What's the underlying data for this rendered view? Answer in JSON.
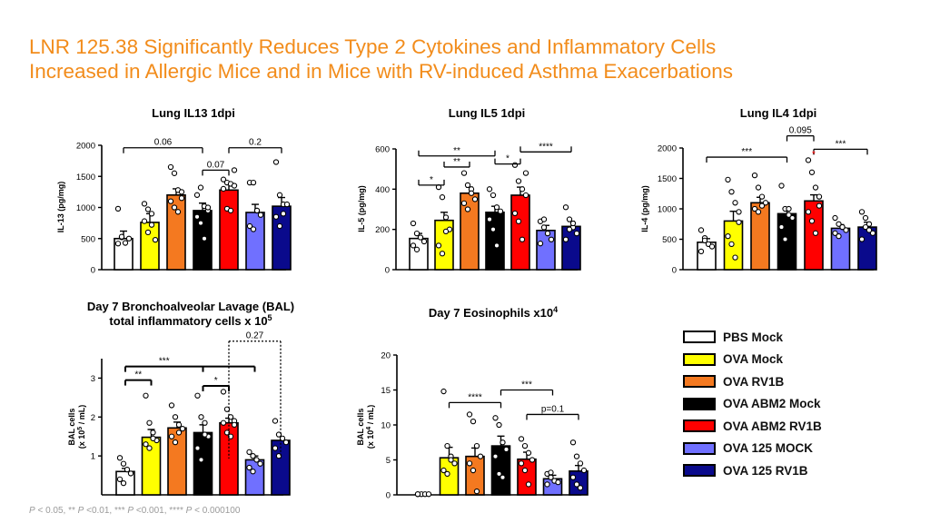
{
  "slide": {
    "title_line1": "LNR 125.38 Significantly Reduces Type 2 Cytokines and Inflammatory Cells",
    "title_line2": "Increased in Allergic Mice and in Mice with RV-induced Asthma Exacerbations",
    "footnote": {
      "parts": [
        "P",
        " < 0.05, ** ",
        "P",
        " <0.01, *** ",
        "P",
        " <0.001, **** ",
        "P",
        " < 0.000100"
      ]
    }
  },
  "legend": {
    "items": [
      {
        "label": "PBS Mock",
        "color": "#ffffff"
      },
      {
        "label": "OVA Mock",
        "color": "#ffff00"
      },
      {
        "label": "OVA RV1B",
        "color": "#f47920"
      },
      {
        "label": "OVA ABM2 Mock",
        "color": "#000000"
      },
      {
        "label": "OVA ABM2 RV1B",
        "color": "#ff0000"
      },
      {
        "label": "OVA 125 MOCK",
        "color": "#7070ff"
      },
      {
        "label": "OVA 125 RV1B",
        "color": "#0a0a8c"
      }
    ]
  },
  "colors": {
    "title": "#f28c1b",
    "significance_marker": "#ff0000"
  },
  "chart_data": [
    {
      "type": "bar",
      "title": "Lung IL13 1dpi",
      "ylabel": "IL-13 (pg/mg)",
      "ylim": [
        0,
        2000
      ],
      "yticks": [
        "0",
        "500",
        "1000",
        "1500",
        "2000"
      ],
      "categories": [
        "PBS Mock",
        "OVA Mock",
        "OVA RV1B",
        "OVA ABM2 Mock",
        "OVA ABM2 RV1B",
        "OVA 125 MOCK",
        "OVA 125 RV1B"
      ],
      "values": [
        500,
        760,
        1200,
        950,
        1280,
        920,
        1020
      ],
      "errors": [
        120,
        140,
        100,
        120,
        110,
        130,
        140
      ],
      "points": [
        [
          980,
          520,
          430,
          500,
          420,
          530
        ],
        [
          1060,
          970,
          720,
          480,
          780,
          600,
          900
        ],
        [
          1650,
          1550,
          1280,
          1250,
          1100,
          1000,
          930,
          1150
        ],
        [
          1200,
          1320,
          1020,
          950,
          850,
          750,
          500,
          1000
        ],
        [
          1450,
          1400,
          1380,
          1350,
          1300,
          980,
          950,
          1600
        ],
        [
          1400,
          1400,
          950,
          880,
          700,
          650,
          950
        ],
        [
          1730,
          1200,
          1050,
          1050,
          850,
          700,
          900
        ]
      ],
      "brackets": [
        {
          "from": 0,
          "to": 3,
          "label": "0.06",
          "y": 1960,
          "ticks": "down"
        },
        {
          "from": 3,
          "to": 4,
          "label": "0.07",
          "y": 1600,
          "ticks": "down"
        },
        {
          "from": 4,
          "to": 6,
          "label": "0.2",
          "y": 1960,
          "ticks": "down"
        }
      ]
    },
    {
      "type": "bar",
      "title": "Lung IL5 1dpi",
      "ylabel": "IL-5 (pg/mg)",
      "ylim": [
        0,
        600
      ],
      "yticks": [
        "0",
        "200",
        "400",
        "600"
      ],
      "categories": [
        "PBS Mock",
        "OVA Mock",
        "OVA RV1B",
        "OVA ABM2 Mock",
        "OVA ABM2 RV1B",
        "OVA 125 MOCK",
        "OVA 125 RV1B"
      ],
      "values": [
        155,
        245,
        380,
        285,
        370,
        195,
        215
      ],
      "errors": [
        25,
        40,
        30,
        30,
        40,
        25,
        25
      ],
      "points": [
        [
          230,
          180,
          160,
          140,
          120,
          100
        ],
        [
          410,
          360,
          260,
          200,
          120,
          80,
          190
        ],
        [
          480,
          420,
          400,
          350,
          330,
          300,
          380
        ],
        [
          400,
          370,
          310,
          290,
          250,
          200,
          120
        ],
        [
          520,
          440,
          400,
          370,
          280,
          240,
          150,
          480
        ],
        [
          240,
          210,
          180,
          150,
          130,
          250
        ],
        [
          310,
          250,
          210,
          180,
          150,
          200,
          230
        ]
      ],
      "brackets": [
        {
          "from": 0,
          "to": 1,
          "label": "*",
          "y": 420,
          "ticks": "up"
        },
        {
          "from": 1,
          "to": 2,
          "label": "**",
          "y": 510,
          "ticks": "up"
        },
        {
          "from": 0,
          "to": 3,
          "label": "**",
          "y": 565,
          "ticks": "up"
        },
        {
          "from": 3,
          "to": 4,
          "label": "*",
          "y": 525,
          "ticks": "up"
        },
        {
          "from": 4,
          "to": 6,
          "label": "****",
          "y": 585,
          "ticks": "up"
        }
      ]
    },
    {
      "type": "bar",
      "title": "Lung IL4 1dpi",
      "ylabel": "IL-4 (pg/mg)",
      "ylim": [
        0,
        2000
      ],
      "yticks": [
        "0",
        "500",
        "1000",
        "1500",
        "2000"
      ],
      "categories": [
        "PBS Mock",
        "OVA Mock",
        "OVA RV1B",
        "OVA ABM2 Mock",
        "OVA ABM2 RV1B",
        "OVA 125 MOCK",
        "OVA 125 RV1B"
      ],
      "values": [
        450,
        800,
        1100,
        920,
        1130,
        680,
        700
      ],
      "errors": [
        60,
        160,
        90,
        90,
        100,
        60,
        80
      ],
      "points": [
        [
          650,
          520,
          420,
          380,
          300,
          480
        ],
        [
          1480,
          1280,
          1100,
          780,
          550,
          420,
          200,
          950
        ],
        [
          1550,
          1350,
          1200,
          1100,
          1000,
          950,
          1050
        ],
        [
          1380,
          1000,
          900,
          850,
          700,
          500,
          1000
        ],
        [
          1800,
          1600,
          1350,
          1200,
          950,
          800,
          600,
          1050
        ],
        [
          850,
          750,
          700,
          650,
          600,
          550,
          700
        ],
        [
          950,
          850,
          750,
          600,
          500,
          700,
          650
        ]
      ],
      "brackets": [
        {
          "from": 0,
          "to": 3,
          "label": "***",
          "y": 1850,
          "ticks": "down"
        },
        {
          "from": 3,
          "to": 4,
          "label": "0.095",
          "y": 2200,
          "ticks": "down"
        },
        {
          "from": 4,
          "to": 6,
          "label": "***",
          "y": 1980,
          "ticks": "down"
        }
      ],
      "markers": [
        {
          "bar": 4,
          "label": "*",
          "y": 1850
        }
      ]
    },
    {
      "type": "bar",
      "title": "Day 7 Bronchoalveolar Lavage (BAL)",
      "subtitle": "total inflammatory cells x 10",
      "subtitle_exp": "5",
      "ylabel": "BAL cells",
      "ylabel2": "(x 10",
      "ylabel2_exp": "5",
      "ylabel2_end": " / mL)",
      "ylim": [
        0,
        3.5
      ],
      "yticks": [
        "1",
        "2",
        "3"
      ],
      "categories": [
        "PBS Mock",
        "OVA Mock",
        "OVA RV1B",
        "OVA ABM2 Mock",
        "OVA ABM2 RV1B",
        "OVA 125 MOCK",
        "OVA 125 RV1B"
      ],
      "values": [
        0.6,
        1.48,
        1.72,
        1.6,
        1.85,
        0.9,
        1.4
      ],
      "errors": [
        0.08,
        0.2,
        0.15,
        0.2,
        0.12,
        0.1,
        0.1
      ],
      "points": [
        [
          0.95,
          0.8,
          0.65,
          0.55,
          0.4,
          0.3
        ],
        [
          2.55,
          1.85,
          1.6,
          1.4,
          1.3,
          1.2,
          1.45
        ],
        [
          2.3,
          2.0,
          1.8,
          1.7,
          1.5,
          1.35,
          1.6
        ],
        [
          2.55,
          2.0,
          1.85,
          1.5,
          1.2,
          0.9,
          1.55
        ],
        [
          2.65,
          2.2,
          2.0,
          1.9,
          1.85,
          1.6,
          1.5,
          1.8
        ],
        [
          1.1,
          1.0,
          0.9,
          0.8,
          0.7,
          0.6
        ],
        [
          1.9,
          1.55,
          1.45,
          1.35,
          1.2,
          1.0
        ]
      ],
      "brackets": [
        {
          "from": 0,
          "to": 1,
          "label": "**",
          "y": 2.95,
          "ticks": "down",
          "thick": true
        },
        {
          "from": 0,
          "to": 3,
          "label": "***",
          "y": 3.3,
          "ticks": "down",
          "thick": true
        },
        {
          "from": 3,
          "to": 4,
          "label": "*",
          "y": 2.8,
          "ticks": "down",
          "thick": true
        },
        {
          "from": 3,
          "to": 5,
          "label": "",
          "y": 3.3,
          "ticks": "down",
          "thick": true
        },
        {
          "from": 4,
          "to": 6,
          "label": "0.27",
          "y": 3.95,
          "ticks": "down",
          "dotted": true
        }
      ]
    },
    {
      "type": "bar",
      "title": "Day 7 Eosinophils x10",
      "title_exp": "4",
      "ylabel": "BAL cells",
      "ylabel2": "(x 10",
      "ylabel2_exp": "4",
      "ylabel2_end": " / mL)",
      "ylim": [
        0,
        20
      ],
      "yticks": [
        "0",
        "5",
        "10",
        "15",
        "20"
      ],
      "categories": [
        "PBS Mock",
        "OVA Mock",
        "OVA RV1B",
        "OVA ABM2 Mock",
        "OVA ABM2 RV1B",
        "OVA 125 MOCK",
        "OVA 125 RV1B"
      ],
      "values": [
        0,
        5.3,
        5.5,
        7.0,
        5.1,
        2.3,
        3.4
      ],
      "errors": [
        0,
        1.5,
        1.2,
        1.4,
        1.0,
        0.5,
        0.8
      ],
      "points": [
        [
          0.1,
          0.1,
          0.1,
          0.1,
          0.1
        ],
        [
          14.8,
          7.0,
          5.5,
          4.5,
          3.5,
          3.0,
          5.0
        ],
        [
          11.5,
          10.5,
          7.0,
          5.5,
          4.5,
          3.5,
          0.5
        ],
        [
          11.0,
          10.0,
          7.5,
          6.5,
          5.5,
          3.0,
          2.5
        ],
        [
          8.0,
          7.0,
          6.0,
          5.0,
          4.5,
          3.5,
          1.5
        ],
        [
          3.0,
          2.5,
          2.0,
          1.8,
          1.5,
          3.2
        ],
        [
          7.5,
          5.5,
          4.5,
          3.5,
          2.5,
          1.5,
          1.0
        ]
      ],
      "brackets": [
        {
          "from": 1,
          "to": 3,
          "label": "****",
          "y": 13.2,
          "ticks": "down"
        },
        {
          "from": 3,
          "to": 5,
          "label": "***",
          "y": 15.0,
          "ticks": "down"
        },
        {
          "from": 4,
          "to": 6,
          "label": "p=0.1",
          "y": 11.5,
          "ticks": "down"
        }
      ]
    }
  ]
}
